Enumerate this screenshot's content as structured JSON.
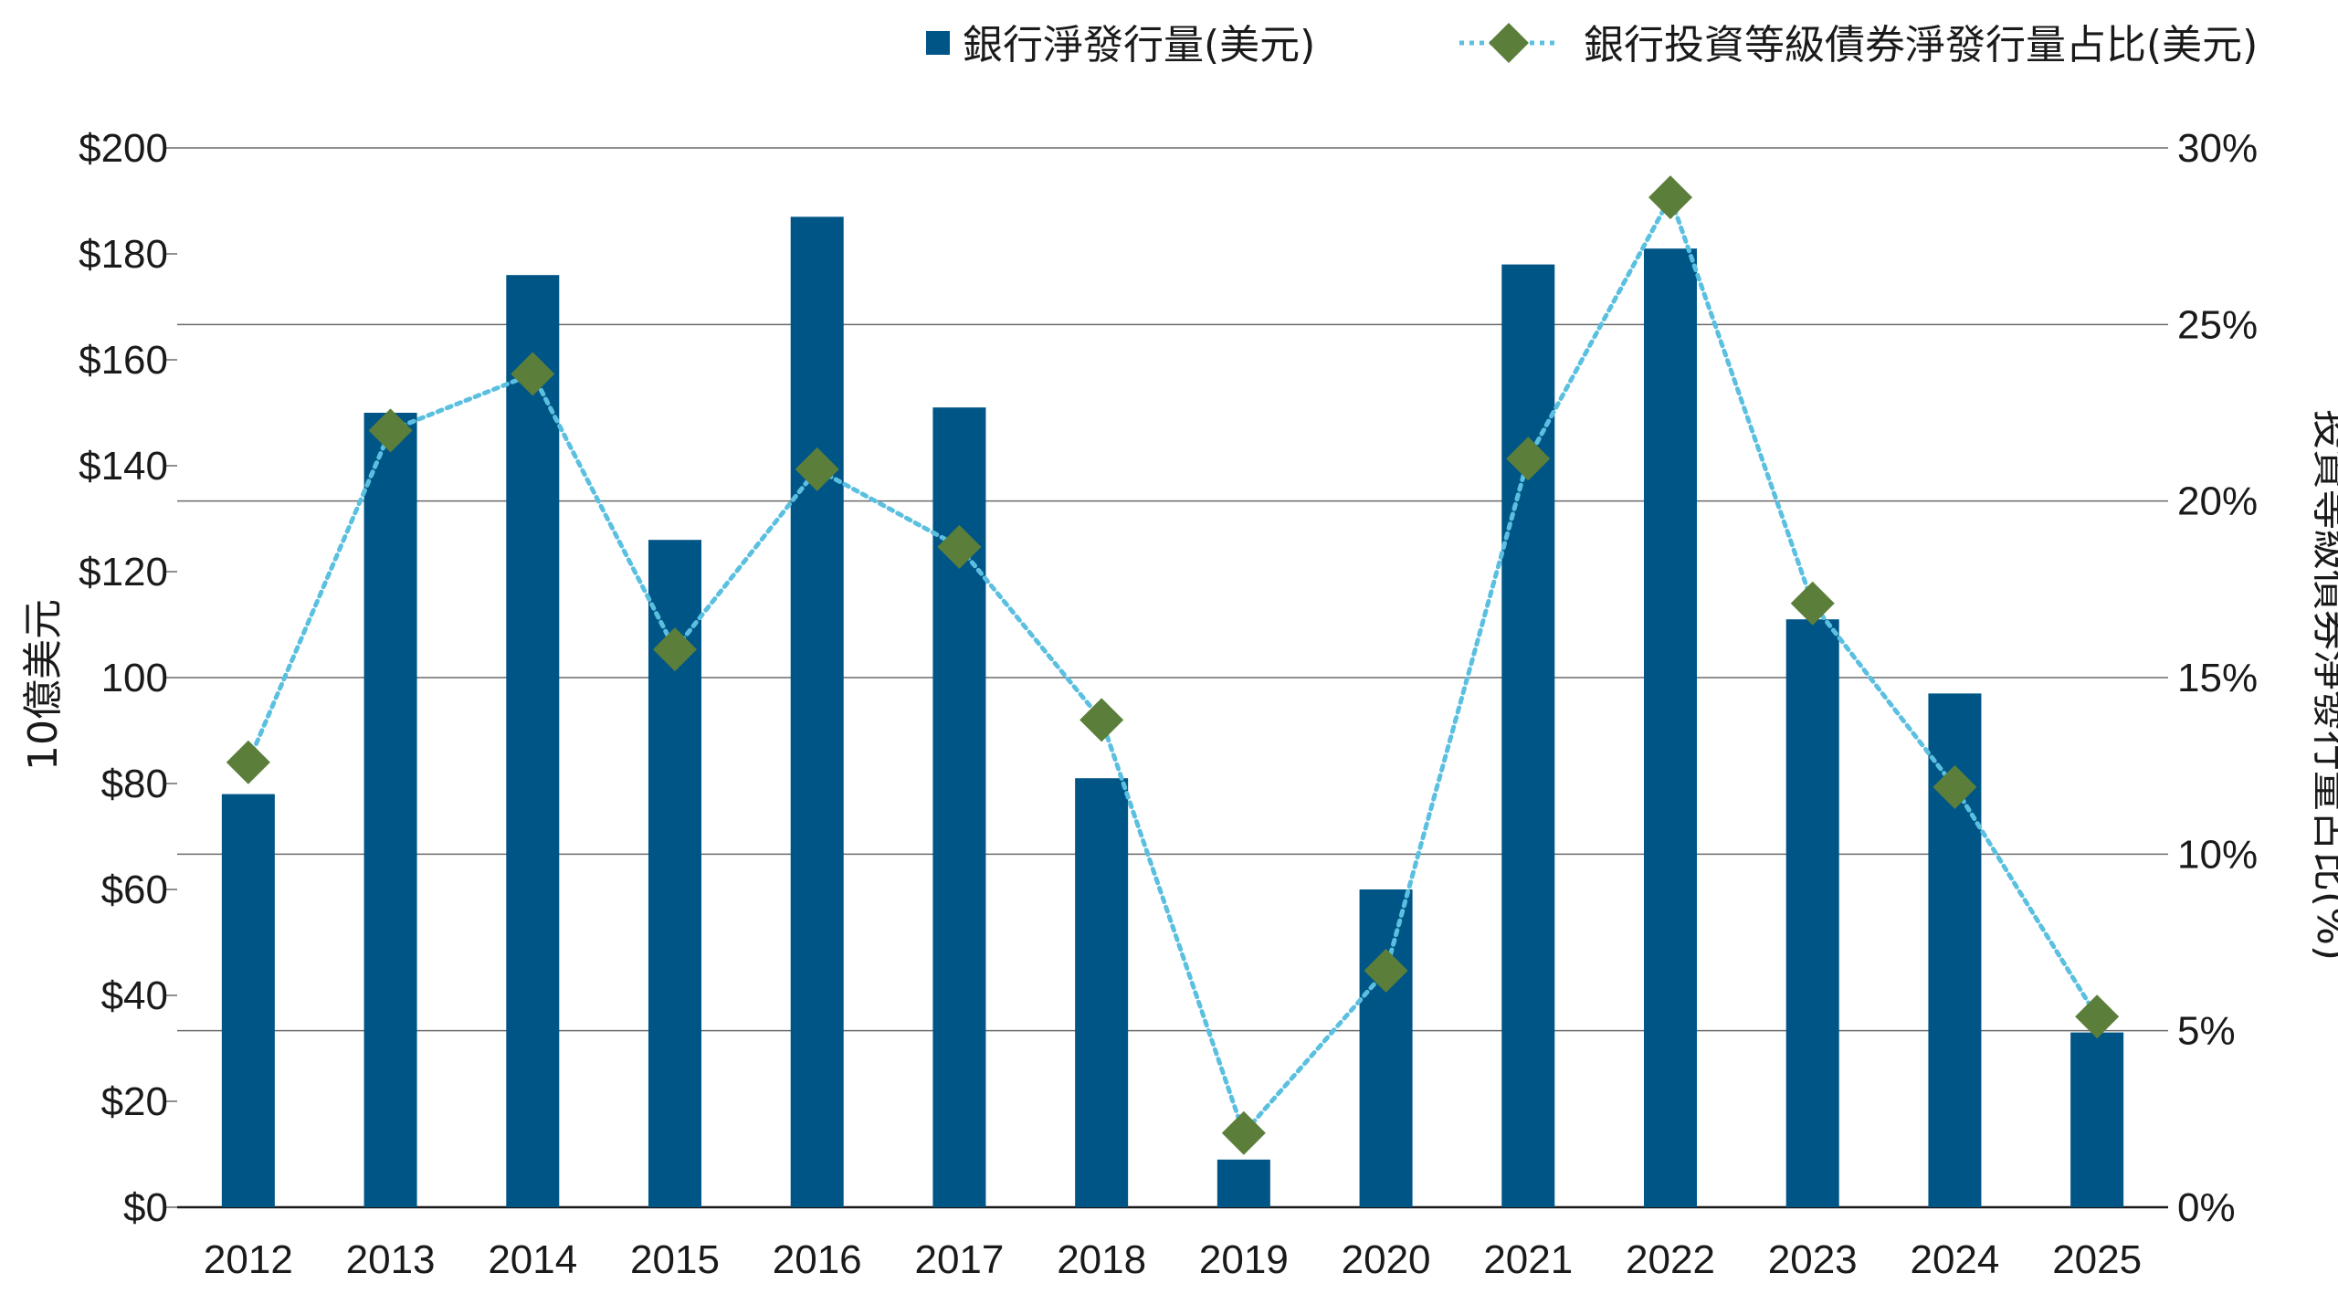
{
  "chart_data": {
    "type": "bar",
    "categories": [
      "2012",
      "2013",
      "2014",
      "2015",
      "2016",
      "2017",
      "2018",
      "2019",
      "2020",
      "2021",
      "2022",
      "2023",
      "2024",
      "2025"
    ],
    "series": [
      {
        "name": "銀行淨發行量(美元)",
        "type": "bar",
        "axis": "left",
        "color": "#005587",
        "values": [
          78,
          150,
          176,
          126,
          187,
          151,
          81,
          9,
          60,
          178,
          181,
          111,
          97,
          33
        ]
      },
      {
        "name": "銀行投資等級債券淨發行量占比(美元)",
        "type": "line",
        "axis": "right",
        "line_style": "dotted",
        "line_color": "#5bc0e0",
        "marker": "diamond",
        "marker_color": "#5b7f3a",
        "values": [
          12.6,
          22.0,
          23.6,
          15.8,
          20.9,
          18.7,
          13.8,
          2.1,
          6.7,
          21.2,
          28.6,
          17.1,
          11.9,
          5.4
        ]
      }
    ],
    "y_left": {
      "label": "10億美元",
      "ylim": [
        0,
        200
      ],
      "ticks": [
        0,
        20,
        40,
        60,
        80,
        100,
        120,
        140,
        160,
        180,
        200
      ],
      "tick_labels": [
        "$0",
        "$20",
        "$40",
        "$60",
        "$80",
        "100",
        "$120",
        "$140",
        "$160",
        "$180",
        "$200"
      ]
    },
    "y_right": {
      "label": "投資等級債券淨發行量占比(%)",
      "ylim": [
        0,
        30
      ],
      "ticks": [
        0,
        5,
        10,
        15,
        20,
        25,
        30
      ],
      "tick_labels": [
        "0%",
        "5%",
        "10%",
        "15%",
        "20%",
        "25%",
        "30%"
      ]
    },
    "grid": true,
    "legend_position": "top-right"
  }
}
